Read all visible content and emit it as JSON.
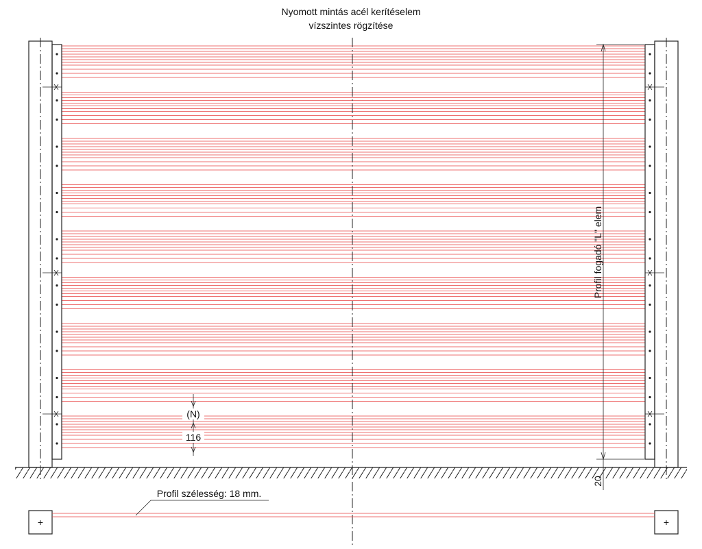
{
  "title": {
    "line1": "Nyomott mintás acél kerítéselem",
    "line2": "vízszintes rögzítése"
  },
  "dimensions": {
    "gap": "(N)",
    "height": "116",
    "l_element": "Profil fogadó \"L\" elem",
    "bottom": "20"
  },
  "plan": {
    "note": "Profil szélesség: 18 mm."
  }
}
